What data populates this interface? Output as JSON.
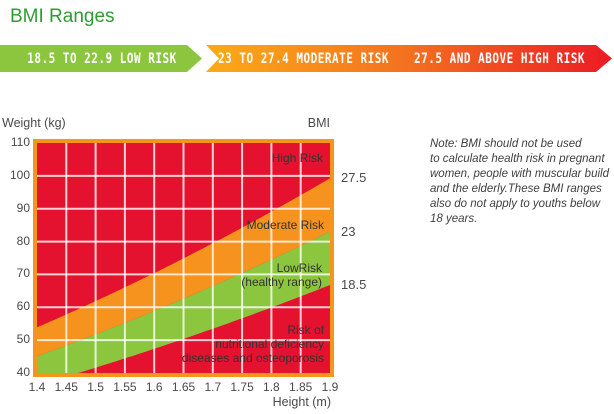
{
  "page": {
    "title": "BMI Ranges"
  },
  "banner": {
    "segments": [
      {
        "label": "18.5 TO 22.9 LOW RISK",
        "risk": "LOW RISK",
        "range": "18.5 TO 22.9",
        "color": "#8cc63f"
      },
      {
        "label": "23 TO 27.4 MODERATE RISK",
        "risk": "MODERATE RISK",
        "range": "23 TO 27.4",
        "color": "#f4731f"
      },
      {
        "label": "27.5 AND ABOVE HIGH RISK",
        "risk": "HIGH RISK",
        "range": "27.5 AND ABOVE",
        "color": "#eb1b24"
      }
    ],
    "gradient_stops": [
      "#fbab17",
      "#f4731f",
      "#eb1b24"
    ],
    "text_color": "#ffffff"
  },
  "chart_data": {
    "type": "area",
    "title": "BMI Ranges",
    "xlabel": "Height (m)",
    "ylabel": "Weight (kg)",
    "secondary_axis_label": "BMI",
    "xlim": [
      1.4,
      1.9
    ],
    "ylim": [
      40,
      110
    ],
    "x_ticks": [
      "1.4",
      "1.45",
      "1.5",
      "1.55",
      "1.6",
      "1.65",
      "1.7",
      "1.75",
      "1.8",
      "1.85",
      "1.9"
    ],
    "y_ticks": [
      110,
      100,
      90,
      80,
      70,
      60,
      50,
      40
    ],
    "grid": true,
    "boundaries": [
      {
        "bmi": 27.5,
        "label": "27.5"
      },
      {
        "bmi": 23,
        "label": "23"
      },
      {
        "bmi": 18.5,
        "label": "18.5"
      }
    ],
    "regions": [
      {
        "name": "high-risk",
        "label": "High Risk",
        "bmi_min": 27.5,
        "color": "#e4122e"
      },
      {
        "name": "moderate-risk",
        "label": "Moderate Risk",
        "bmi_min": 23,
        "bmi_max": 27.5,
        "color": "#f6921e"
      },
      {
        "name": "low-risk",
        "label": "LowRisk\n(healthy range)",
        "bmi_min": 18.5,
        "bmi_max": 23,
        "color": "#8cc63f"
      },
      {
        "name": "underweight",
        "label": "Risk of\nnutritional deficiency\ndiseases and osteoporosis",
        "bmi_max": 18.5,
        "color": "#e4122e"
      }
    ],
    "colors": {
      "frame_border": "#f7941d",
      "gridline": "rgba(255,255,255,0.8)"
    }
  },
  "note": {
    "text": "Note: BMI should not be used\nto calculate health risk in pregnant\nwomen, people with muscular build\nand the elderly.These BMI ranges\nalso do not apply to youths below\n18 years."
  }
}
